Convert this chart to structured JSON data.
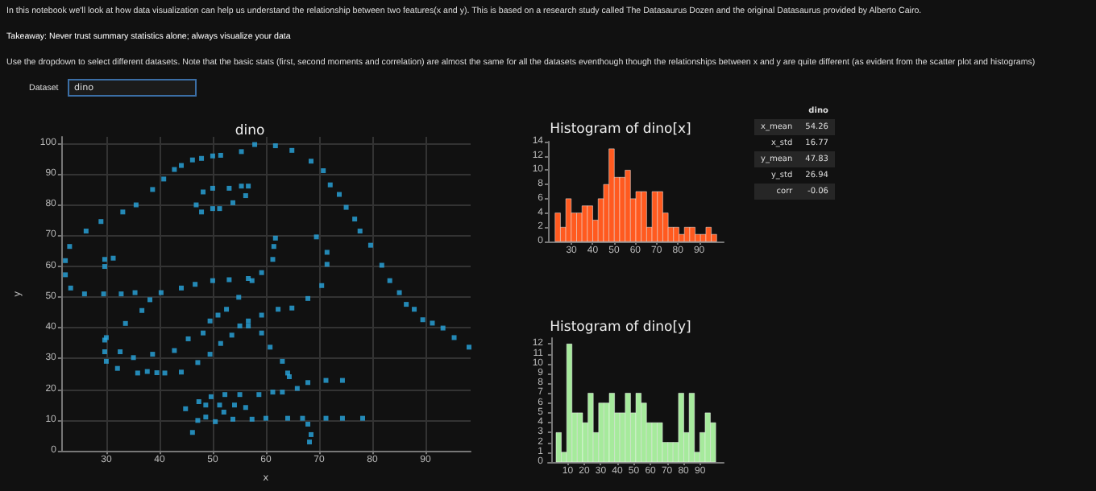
{
  "chart_data": [
    {
      "type": "other",
      "annotations": [
        "In this notebook we'll look at how data visualization can help us understand the relationship between two features(x and y). This is based on a research study called The Datasaurus Dozen and the original Datasaurus provided by Alberto Cairo.",
        "Takeaway: Never trust summary statistics alone; always visualize your data",
        "Use the dropdown to select different datasets. Note that the basic stats (first, second moments and correlation) are almost the same for all the datasets eventhough though the relationships between x and y are quite different (as evident from the scatter plot and histograms)",
        "Dataset",
        "dino"
      ]
    },
    {
      "type": "scatter",
      "title": "dino",
      "xlabel": "x",
      "ylabel": "y",
      "grid": true,
      "marker": "square",
      "color": "#29a8e0",
      "x": [
        55.4,
        51.5,
        46.2,
        42.8,
        40.8,
        38.7,
        35.6,
        33.1,
        29.0,
        26.2,
        23.1,
        22.3,
        22.3,
        23.3,
        25.9,
        29.5,
        32.8,
        35.4,
        40.3,
        44.1,
        46.7,
        50.0,
        53.1,
        56.7,
        59.2,
        61.3,
        61.5,
        61.8,
        57.4,
        54.9,
        52.6,
        48.2,
        49.5,
        51.0,
        45.4,
        42.8,
        38.7,
        35.1,
        32.6,
        30.0,
        33.6,
        36.7,
        38.2,
        29.7,
        29.7,
        30.0,
        32.1,
        35.9,
        41.0,
        44.1,
        47.2,
        49.5,
        51.5,
        53.6,
        55.1,
        56.7,
        59.2,
        62.3,
        64.9,
        67.9,
        70.5,
        71.5,
        71.5,
        69.5,
        46.9,
        48.2,
        50.0,
        53.1,
        55.4,
        56.7,
        56.2,
        53.8,
        51.3,
        50.0,
        47.9,
        29.7,
        29.7,
        31.3,
        57.9,
        61.8,
        64.9,
        68.5,
        70.8,
        72.1,
        73.8,
        75.1,
        76.7,
        77.7,
        79.7,
        81.8,
        83.3,
        85.1,
        86.4,
        87.9,
        89.5,
        93.3,
        95.4,
        98.2,
        56.7,
        59.2,
        60.8,
        63.1,
        64.1,
        64.4,
        74.4,
        71.3,
        67.9,
        65.9,
        63.1,
        61.3,
        58.7,
        55.1,
        52.3,
        49.7,
        47.4,
        44.9,
        48.7,
        51.3,
        54.1,
        56.2,
        52.1,
        48.7,
        47.2,
        46.2,
        50.5,
        53.8,
        57.4,
        60.0,
        64.1,
        66.9,
        71.3,
        74.4,
        78.2,
        67.9,
        68.5,
        68.2,
        37.7,
        39.5,
        91.3,
        50.0,
        47.9,
        44.1
      ],
      "values": [
        97.2,
        96.0,
        94.5,
        91.4,
        88.3,
        84.9,
        79.9,
        77.6,
        74.5,
        71.4,
        66.4,
        61.8,
        57.2,
        52.9,
        51.0,
        51.0,
        51.0,
        51.4,
        51.4,
        52.9,
        54.1,
        55.3,
        55.6,
        56.0,
        57.9,
        62.2,
        66.4,
        69.1,
        55.3,
        49.9,
        46.0,
        38.3,
        42.2,
        44.1,
        36.4,
        32.6,
        31.4,
        30.3,
        32.2,
        36.8,
        41.4,
        45.6,
        49.1,
        36.0,
        32.2,
        29.1,
        26.8,
        25.3,
        25.3,
        25.6,
        28.7,
        31.4,
        34.9,
        37.6,
        40.6,
        42.2,
        44.1,
        46.0,
        46.4,
        49.5,
        53.7,
        60.6,
        64.5,
        69.5,
        79.9,
        84.1,
        85.3,
        85.3,
        86.0,
        86.0,
        82.9,
        80.6,
        78.7,
        78.7,
        77.6,
        59.9,
        62.2,
        62.6,
        99.5,
        99.1,
        97.6,
        94.1,
        91.0,
        86.4,
        83.3,
        79.1,
        75.3,
        71.4,
        66.8,
        60.3,
        55.3,
        51.4,
        47.6,
        46.0,
        42.6,
        39.9,
        36.8,
        33.7,
        40.6,
        38.3,
        33.7,
        29.1,
        25.3,
        24.1,
        22.9,
        22.9,
        22.2,
        20.3,
        19.1,
        19.1,
        18.3,
        18.3,
        18.3,
        17.6,
        16.0,
        13.7,
        14.9,
        14.9,
        14.9,
        14.1,
        12.6,
        11.0,
        9.9,
        6.0,
        9.5,
        10.3,
        10.3,
        10.6,
        10.6,
        10.6,
        10.6,
        10.6,
        10.6,
        8.7,
        5.3,
        2.9,
        25.8,
        25.4,
        41.5,
        95.8,
        95.0,
        92.7
      ],
      "xlim": [
        21.5,
        98.5
      ],
      "xticks": [
        30,
        40,
        50,
        60,
        70,
        80,
        90
      ],
      "ylim": [
        0,
        102
      ],
      "yticks": [
        0,
        10,
        20,
        30,
        40,
        50,
        60,
        70,
        80,
        90,
        100
      ]
    },
    {
      "type": "histogram",
      "title": "Histogram of dino[x]",
      "color": "#ff5a1f",
      "bins": [
        22.31,
        24.84,
        27.37,
        29.9,
        32.43,
        34.96,
        37.49,
        40.02,
        42.55,
        45.08,
        47.61,
        50.14,
        52.67,
        55.2,
        57.73,
        60.26,
        62.79,
        65.32,
        67.85,
        70.38,
        72.91,
        75.44,
        77.97,
        80.5,
        83.03,
        85.56,
        88.09,
        90.62,
        93.15,
        95.68,
        98.21
      ],
      "values": [
        4,
        2,
        6,
        4,
        4,
        5,
        5,
        3,
        6,
        8,
        13,
        9,
        9,
        10,
        6,
        7,
        7,
        2,
        7,
        7,
        4,
        2,
        2,
        1,
        2,
        2,
        1,
        1,
        2,
        1
      ],
      "xlim": [
        19,
        101.5
      ],
      "xticks": [
        30,
        40,
        50,
        60,
        70,
        80,
        90
      ],
      "ylim": [
        0,
        14
      ],
      "yticks": [
        0,
        2,
        4,
        6,
        8,
        10,
        12,
        14
      ]
    },
    {
      "type": "histogram",
      "title": "Histogram of dino[y]",
      "color": "#a6ea9c",
      "bins": [
        2.95,
        6.17,
        9.39,
        12.6,
        15.82,
        19.04,
        22.26,
        25.48,
        28.7,
        31.91,
        35.13,
        38.35,
        41.57,
        44.79,
        48.01,
        51.22,
        54.44,
        57.66,
        60.88,
        64.1,
        67.32,
        70.54,
        73.75,
        76.97,
        80.19,
        83.41,
        86.63,
        89.85,
        93.06,
        96.28,
        99.5
      ],
      "values": [
        3,
        1,
        12,
        5,
        5,
        4,
        7,
        3,
        6,
        6,
        7,
        5,
        5,
        7,
        5,
        7,
        6,
        4,
        4,
        4,
        2,
        2,
        2,
        7,
        3,
        7,
        1,
        3,
        5,
        4
      ],
      "xlim": [
        -1.9,
        104.3
      ],
      "xticks": [
        10,
        20,
        30,
        40,
        50,
        60,
        70,
        80,
        90
      ],
      "ylim": [
        0,
        12.6
      ],
      "yticks": [
        0,
        1,
        2,
        3,
        4,
        5,
        6,
        7,
        8,
        9,
        10,
        11,
        12
      ]
    },
    {
      "type": "other",
      "title": "dino",
      "categories": [
        "x_mean",
        "x_std",
        "y_mean",
        "y_std",
        "corr"
      ],
      "values": [
        54.26,
        16.77,
        47.83,
        26.94,
        -0.06
      ],
      "data_labels": true
    }
  ]
}
